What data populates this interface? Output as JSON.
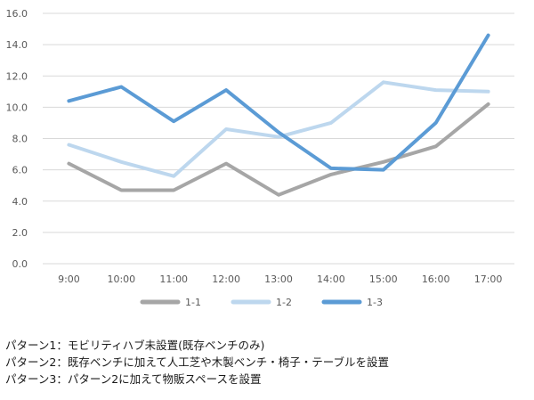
{
  "chart_data": {
    "type": "line",
    "categories": [
      "9:00",
      "10:00",
      "11:00",
      "12:00",
      "13:00",
      "14:00",
      "15:00",
      "16:00",
      "17:00"
    ],
    "ylim": [
      0,
      16
    ],
    "yticks": [
      "0.0",
      "2.0",
      "4.0",
      "6.0",
      "8.0",
      "10.0",
      "12.0",
      "14.0",
      "16.0"
    ],
    "grid": true,
    "legend_position": "bottom",
    "series": [
      {
        "name": "1-1",
        "color": "#a6a6a6",
        "values": [
          6.4,
          4.7,
          4.7,
          6.4,
          4.4,
          5.7,
          6.5,
          7.5,
          10.2
        ]
      },
      {
        "name": "1-2",
        "color": "#bdd7ee",
        "values": [
          7.6,
          6.5,
          5.6,
          8.6,
          8.1,
          9.0,
          11.6,
          11.1,
          11.0
        ]
      },
      {
        "name": "1-3",
        "color": "#5b9bd5",
        "values": [
          10.4,
          11.3,
          9.1,
          11.1,
          8.4,
          6.1,
          6.0,
          9.0,
          14.6
        ]
      }
    ]
  },
  "notes": [
    "パターン1：モビリティハブ未設置(既存ベンチのみ)",
    "パターン2：既存ベンチに加えて人工芝や木製ベンチ・椅子・テーブルを設置",
    "パターン3：パターン2に加えて物販スペースを設置"
  ]
}
